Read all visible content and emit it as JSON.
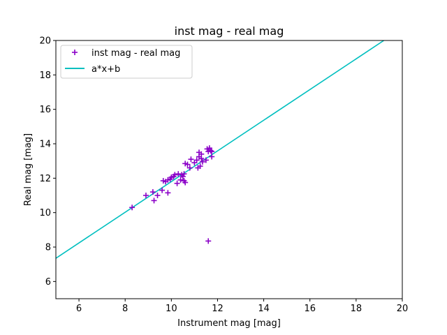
{
  "chart_data": {
    "type": "scatter",
    "title": "inst mag - real mag",
    "xlabel": "Instrument mag [mag]",
    "ylabel": "Real mag [mag]",
    "xlim": [
      5,
      20
    ],
    "ylim": [
      5,
      20
    ],
    "xticks": [
      6,
      8,
      10,
      12,
      14,
      16,
      18,
      20
    ],
    "yticks": [
      6,
      8,
      10,
      12,
      14,
      16,
      18,
      20
    ],
    "grid": false,
    "legend_position": "top-left",
    "series": [
      {
        "name": "inst mag - real mag",
        "kind": "scatter",
        "marker": "plus",
        "color": "#8b00c8",
        "points": [
          [
            8.3,
            10.3
          ],
          [
            8.9,
            11.0
          ],
          [
            9.2,
            11.2
          ],
          [
            9.25,
            10.7
          ],
          [
            9.4,
            11.0
          ],
          [
            9.6,
            11.3
          ],
          [
            9.65,
            11.85
          ],
          [
            9.75,
            11.8
          ],
          [
            9.85,
            11.15
          ],
          [
            9.85,
            11.9
          ],
          [
            9.95,
            11.95
          ],
          [
            10.0,
            12.05
          ],
          [
            10.1,
            12.1
          ],
          [
            10.15,
            12.2
          ],
          [
            10.25,
            11.7
          ],
          [
            10.3,
            12.25
          ],
          [
            10.4,
            11.9
          ],
          [
            10.45,
            12.2
          ],
          [
            10.5,
            12.1
          ],
          [
            10.55,
            11.85
          ],
          [
            10.55,
            12.25
          ],
          [
            10.6,
            11.75
          ],
          [
            10.6,
            12.85
          ],
          [
            10.7,
            12.8
          ],
          [
            10.8,
            12.6
          ],
          [
            10.85,
            13.1
          ],
          [
            11.0,
            12.9
          ],
          [
            11.1,
            13.05
          ],
          [
            11.15,
            12.6
          ],
          [
            11.2,
            13.25
          ],
          [
            11.2,
            13.5
          ],
          [
            11.25,
            12.7
          ],
          [
            11.3,
            13.4
          ],
          [
            11.3,
            13.15
          ],
          [
            11.35,
            12.95
          ],
          [
            11.5,
            13.05
          ],
          [
            11.55,
            13.7
          ],
          [
            11.6,
            13.55
          ],
          [
            11.65,
            13.75
          ],
          [
            11.7,
            13.6
          ],
          [
            11.75,
            13.55
          ],
          [
            11.75,
            13.25
          ],
          [
            11.6,
            8.35
          ]
        ]
      },
      {
        "name": "a*x+b",
        "kind": "line",
        "color": "#00bfbf",
        "points": [
          [
            5,
            7.35
          ],
          [
            19.2,
            20
          ]
        ]
      }
    ]
  }
}
